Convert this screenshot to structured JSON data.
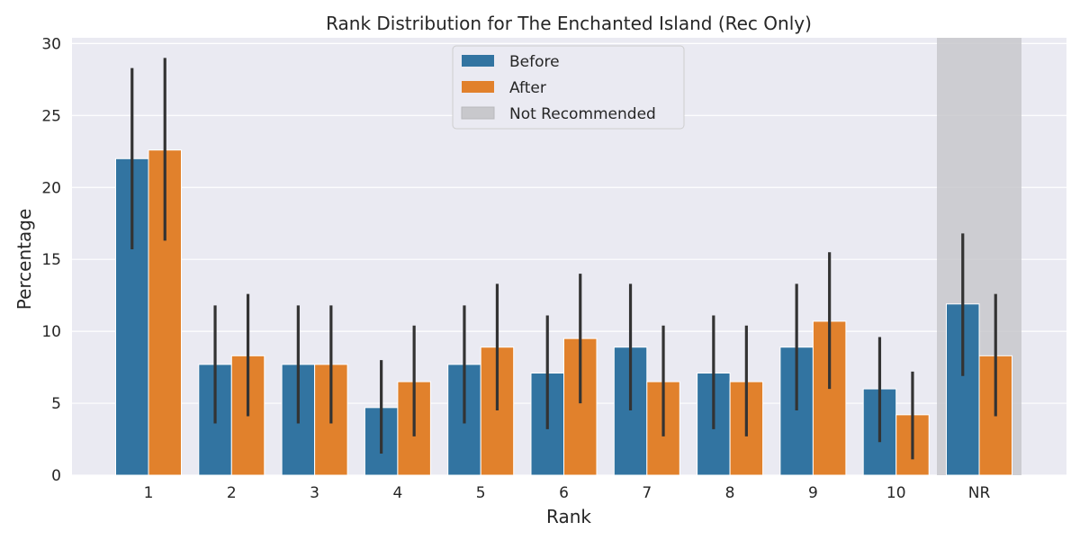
{
  "chart_data": {
    "type": "bar",
    "title": "Rank Distribution for The Enchanted Island (Rec Only)",
    "xlabel": "Rank",
    "ylabel": "Percentage",
    "ylim": [
      0,
      30.4
    ],
    "yticks": [
      "0",
      "5",
      "10",
      "15",
      "20",
      "25",
      "30"
    ],
    "categories": [
      "1",
      "2",
      "3",
      "4",
      "5",
      "6",
      "7",
      "8",
      "9",
      "10",
      "NR"
    ],
    "series": [
      {
        "name": "Before",
        "color": "#3274a1",
        "values": [
          22.0,
          7.7,
          7.7,
          4.7,
          7.7,
          7.1,
          8.9,
          7.1,
          8.9,
          6.0,
          11.9
        ],
        "ci_low": [
          15.7,
          3.6,
          3.6,
          1.5,
          3.6,
          3.2,
          4.5,
          3.2,
          4.5,
          2.3,
          6.9
        ],
        "ci_high": [
          28.3,
          11.8,
          11.8,
          8.0,
          11.8,
          11.1,
          13.3,
          11.1,
          13.3,
          9.6,
          16.8
        ]
      },
      {
        "name": "After",
        "color": "#e1812c",
        "values": [
          22.6,
          8.3,
          7.7,
          6.5,
          8.9,
          9.5,
          6.5,
          6.5,
          10.7,
          4.2,
          8.3
        ],
        "ci_low": [
          16.3,
          4.1,
          3.6,
          2.7,
          4.5,
          5.0,
          2.7,
          2.7,
          6.0,
          1.1,
          4.1
        ],
        "ci_high": [
          29.0,
          12.6,
          11.8,
          10.4,
          13.3,
          14.0,
          10.4,
          10.4,
          15.5,
          7.2,
          12.6
        ]
      }
    ],
    "highlight": {
      "category": "NR",
      "label": "Not Recommended",
      "color": "#c8c8cc"
    },
    "legend_entries": [
      "Before",
      "After",
      "Not Recommended"
    ],
    "legend_position": "top-center",
    "grid": true,
    "background": "#eaeaf2",
    "error_bar_color": "#333333"
  }
}
